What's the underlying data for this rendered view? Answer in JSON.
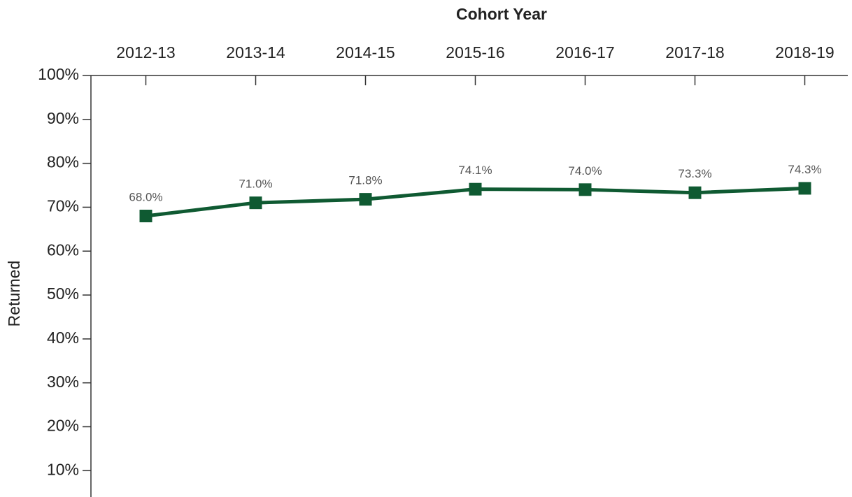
{
  "chart_data": {
    "type": "line",
    "title": "Cohort Year",
    "y_label": "Returned",
    "categories": [
      "2012-13",
      "2013-14",
      "2014-15",
      "2015-16",
      "2016-17",
      "2017-18",
      "2018-19"
    ],
    "series": [
      {
        "name": "Returned",
        "color": "#0f5a32",
        "values": [
          68.0,
          71.0,
          71.8,
          74.1,
          74.0,
          73.3,
          74.3
        ],
        "value_labels": [
          "68.0%",
          "71.0%",
          "71.8%",
          "74.1%",
          "74.0%",
          "73.3%",
          "74.3%"
        ]
      }
    ],
    "ylim": [
      4,
      100
    ],
    "yticks": [
      {
        "value": 10,
        "label": "10%"
      },
      {
        "value": 20,
        "label": "20%"
      },
      {
        "value": 30,
        "label": "30%"
      },
      {
        "value": 40,
        "label": "40%"
      },
      {
        "value": 50,
        "label": "50%"
      },
      {
        "value": 60,
        "label": "60%"
      },
      {
        "value": 70,
        "label": "70%"
      },
      {
        "value": 80,
        "label": "80%"
      },
      {
        "value": 90,
        "label": "90%"
      },
      {
        "value": 100,
        "label": "100%"
      }
    ]
  }
}
